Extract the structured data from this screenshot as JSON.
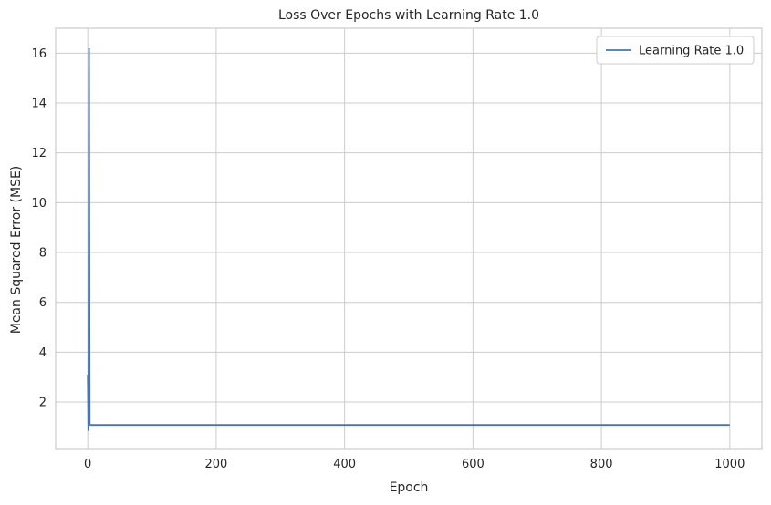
{
  "chart_data": {
    "type": "line",
    "title": "Loss Over Epochs with Learning Rate 1.0",
    "xlabel": "Epoch",
    "ylabel": "Mean Squared Error (MSE)",
    "xlim": [
      -50,
      1050
    ],
    "ylim": [
      0.1,
      17.0
    ],
    "xticks": [
      0,
      200,
      400,
      600,
      800,
      1000
    ],
    "yticks": [
      2,
      4,
      6,
      8,
      10,
      12,
      14,
      16
    ],
    "xtick_labels": [
      "0",
      "200",
      "400",
      "600",
      "800",
      "1000"
    ],
    "ytick_labels": [
      "2",
      "4",
      "6",
      "8",
      "10",
      "12",
      "14",
      "16"
    ],
    "grid": true,
    "legend_position": "upper right",
    "series": [
      {
        "name": "Learning Rate 1.0",
        "color": "#4c72b0",
        "x": [
          0,
          1,
          2,
          3,
          4,
          5,
          6,
          10,
          50,
          100,
          200,
          400,
          600,
          800,
          1000
        ],
        "y": [
          3.1,
          0.85,
          16.2,
          1.1,
          1.08,
          1.08,
          1.08,
          1.08,
          1.08,
          1.08,
          1.08,
          1.08,
          1.08,
          1.08,
          1.08
        ]
      }
    ]
  }
}
